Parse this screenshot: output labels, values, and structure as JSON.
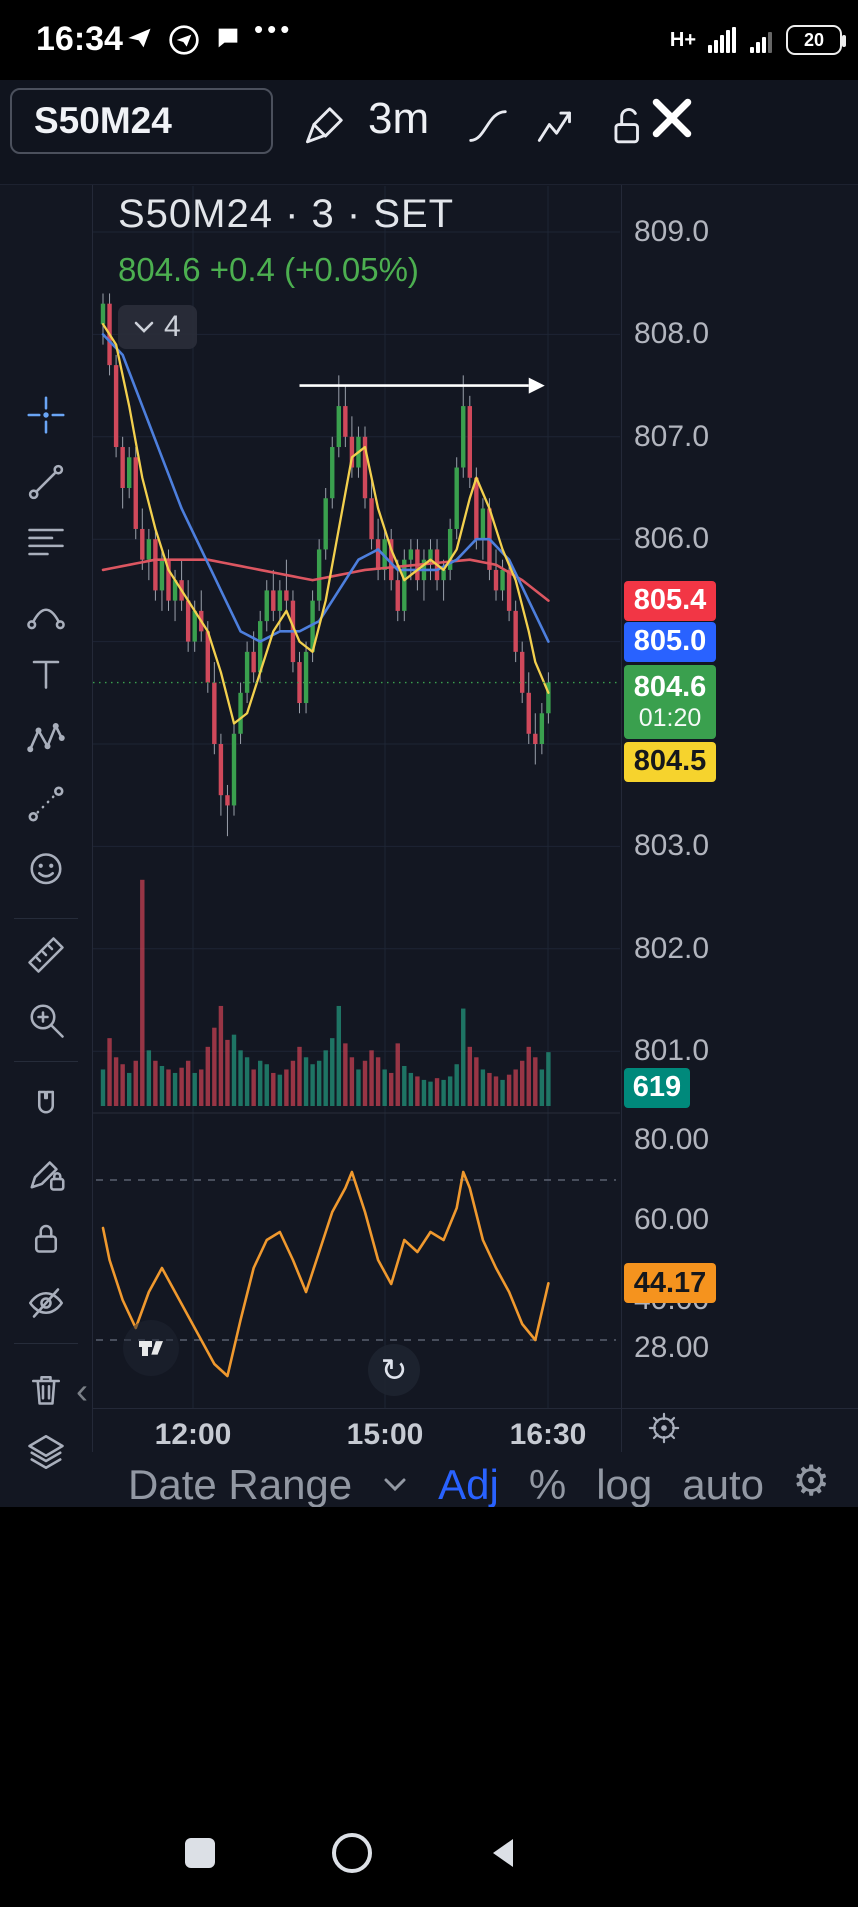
{
  "status_bar": {
    "time": "16:34",
    "network": "H+",
    "battery": "20"
  },
  "toolbar": {
    "symbol": "S50M24",
    "timeframe": "3m"
  },
  "header": {
    "title": "S50M24 · 3 · SET",
    "price": "804.6",
    "change": "+0.4",
    "change_pct": "(+0.05%)",
    "indicators_count": "4"
  },
  "bottom_bar": {
    "date_range": "Date Range",
    "adj": "Adj",
    "percent": "%",
    "log": "log",
    "auto": "auto"
  },
  "colors": {
    "bg": "#131722",
    "grid": "#1e2534",
    "border": "#2a2e39",
    "up": "#3aa04e",
    "down": "#d0495b",
    "wick": "#9aa0ab",
    "vol_up": "rgba(34,140,118,0.8)",
    "vol_down": "rgba(198,64,82,0.75)",
    "ma_yellow": "#f3d04e",
    "ma_blue": "#4d7fdd",
    "ma_red": "#dc5661",
    "rsi": "#f0992e",
    "green_text": "#4caf50",
    "arrow": "#ffffff"
  },
  "chart_data": {
    "type": "candlestick",
    "symbol": "S50M24",
    "interval": "3",
    "exchange": "SET",
    "last": 804.6,
    "change": 0.4,
    "change_pct": 0.05,
    "countdown": "01:20",
    "price_axis_labels": [
      "809.0",
      "808.0",
      "807.0",
      "806.0",
      "803.0",
      "802.0",
      "801.0"
    ],
    "price_gridlines": [
      809,
      808,
      807,
      806,
      805,
      804,
      803,
      802,
      801
    ],
    "rsi_axis_labels": [
      "80.00",
      "60.00",
      "40.00",
      "28.00"
    ],
    "rsi_dashed_levels": [
      70,
      30
    ],
    "time_axis_labels": [
      "12:00",
      "15:00",
      "16:30"
    ],
    "last_price_line": 804.6,
    "arrow_annotation": {
      "from_index": 30,
      "to_index": 65,
      "price": 807.5
    },
    "price_badges": [
      {
        "id": "ma-red",
        "text": "805.4",
        "bg": "#f23645",
        "fg": "#ffffff",
        "price": 805.4
      },
      {
        "id": "ma-blue",
        "text": "805.0",
        "bg": "#2962ff",
        "fg": "#ffffff",
        "price": 805.0
      },
      {
        "id": "last",
        "text": "804.6",
        "sub": "01:20",
        "bg": "#3aa04e",
        "fg": "#ffffff",
        "price": 804.6
      },
      {
        "id": "ma-yellow",
        "text": "804.5",
        "bg": "#f6d32d",
        "fg": "#15171c",
        "price": 804.5
      },
      {
        "id": "volume",
        "text": "619",
        "bg": "#00897b",
        "fg": "#ffffff"
      },
      {
        "id": "rsi",
        "text": "44.17",
        "bg": "#f5931e",
        "fg": "#15171c",
        "value": 44.17
      }
    ],
    "candles": [
      [
        808.1,
        808.4,
        807.9,
        808.3
      ],
      [
        808.3,
        808.4,
        807.6,
        807.7
      ],
      [
        807.7,
        807.8,
        806.8,
        806.9
      ],
      [
        806.9,
        807.0,
        806.3,
        806.5
      ],
      [
        806.5,
        806.9,
        806.4,
        806.8
      ],
      [
        806.8,
        806.9,
        806.0,
        806.1
      ],
      [
        806.1,
        806.3,
        805.7,
        805.8
      ],
      [
        805.8,
        806.1,
        805.6,
        806.0
      ],
      [
        806.0,
        806.1,
        805.4,
        805.5
      ],
      [
        805.5,
        805.9,
        805.3,
        805.8
      ],
      [
        805.8,
        805.9,
        805.3,
        805.4
      ],
      [
        805.4,
        805.7,
        805.2,
        805.6
      ],
      [
        805.6,
        805.8,
        805.3,
        805.4
      ],
      [
        805.4,
        805.6,
        804.9,
        805.0
      ],
      [
        805.0,
        805.4,
        804.9,
        805.3
      ],
      [
        805.3,
        805.5,
        805.0,
        805.1
      ],
      [
        805.1,
        805.2,
        804.5,
        804.6
      ],
      [
        804.6,
        804.8,
        803.9,
        804.0
      ],
      [
        804.0,
        804.1,
        803.3,
        803.5
      ],
      [
        803.5,
        803.6,
        803.1,
        803.4
      ],
      [
        803.4,
        804.2,
        803.3,
        804.1
      ],
      [
        804.1,
        804.6,
        804.0,
        804.5
      ],
      [
        804.5,
        805.0,
        804.4,
        804.9
      ],
      [
        804.9,
        805.1,
        804.6,
        804.7
      ],
      [
        804.7,
        805.3,
        804.6,
        805.2
      ],
      [
        805.2,
        805.6,
        805.1,
        805.5
      ],
      [
        805.5,
        805.7,
        805.2,
        805.3
      ],
      [
        805.3,
        805.6,
        805.1,
        805.5
      ],
      [
        805.5,
        805.8,
        805.3,
        805.4
      ],
      [
        805.4,
        805.5,
        804.7,
        804.8
      ],
      [
        804.8,
        804.9,
        804.3,
        804.4
      ],
      [
        804.4,
        805.0,
        804.3,
        804.9
      ],
      [
        804.9,
        805.5,
        804.8,
        805.4
      ],
      [
        805.4,
        806.0,
        805.3,
        805.9
      ],
      [
        805.9,
        806.5,
        805.8,
        806.4
      ],
      [
        806.4,
        807.0,
        806.3,
        806.9
      ],
      [
        806.9,
        807.6,
        806.8,
        807.3
      ],
      [
        807.3,
        807.5,
        806.9,
        807.0
      ],
      [
        807.0,
        807.2,
        806.6,
        806.7
      ],
      [
        806.7,
        807.1,
        806.6,
        807.0
      ],
      [
        807.0,
        807.1,
        806.3,
        806.4
      ],
      [
        806.4,
        806.6,
        805.9,
        806.0
      ],
      [
        806.0,
        806.2,
        805.6,
        805.7
      ],
      [
        805.7,
        806.1,
        805.6,
        806.0
      ],
      [
        806.0,
        806.1,
        805.5,
        805.6
      ],
      [
        805.6,
        805.8,
        805.2,
        805.3
      ],
      [
        805.3,
        805.9,
        805.2,
        805.8
      ],
      [
        805.8,
        806.0,
        805.6,
        805.9
      ],
      [
        805.9,
        806.0,
        805.5,
        805.6
      ],
      [
        805.6,
        805.9,
        805.4,
        805.8
      ],
      [
        805.8,
        806.0,
        805.6,
        805.9
      ],
      [
        805.9,
        806.0,
        805.5,
        805.6
      ],
      [
        805.6,
        805.8,
        805.4,
        805.7
      ],
      [
        805.7,
        806.2,
        805.6,
        806.1
      ],
      [
        806.1,
        806.8,
        806.0,
        806.7
      ],
      [
        806.7,
        807.6,
        806.6,
        807.3
      ],
      [
        807.3,
        807.4,
        806.5,
        806.6
      ],
      [
        806.6,
        806.7,
        805.9,
        806.0
      ],
      [
        806.0,
        806.4,
        805.8,
        806.3
      ],
      [
        806.3,
        806.4,
        805.6,
        805.7
      ],
      [
        805.7,
        805.9,
        805.4,
        805.5
      ],
      [
        805.5,
        805.8,
        805.4,
        805.7
      ],
      [
        805.7,
        805.8,
        805.2,
        805.3
      ],
      [
        805.3,
        805.4,
        804.8,
        804.9
      ],
      [
        804.9,
        805.0,
        804.4,
        804.5
      ],
      [
        804.5,
        804.7,
        804.0,
        804.1
      ],
      [
        804.1,
        804.3,
        803.8,
        804.0
      ],
      [
        804.0,
        804.4,
        803.9,
        804.3
      ],
      [
        804.3,
        804.7,
        804.2,
        804.6
      ]
    ],
    "volume": [
      420,
      780,
      560,
      480,
      380,
      520,
      2600,
      640,
      520,
      460,
      420,
      380,
      440,
      520,
      380,
      420,
      680,
      900,
      1150,
      760,
      820,
      640,
      560,
      420,
      520,
      480,
      380,
      360,
      420,
      520,
      680,
      560,
      480,
      520,
      640,
      780,
      1150,
      720,
      560,
      420,
      520,
      640,
      560,
      420,
      380,
      720,
      460,
      380,
      340,
      300,
      280,
      320,
      300,
      340,
      480,
      1120,
      680,
      560,
      420,
      380,
      340,
      300,
      360,
      420,
      520,
      680,
      560,
      420,
      619
    ],
    "ma_yellow": [
      [
        0,
        808.1
      ],
      [
        2,
        807.9
      ],
      [
        4,
        807.3
      ],
      [
        6,
        806.6
      ],
      [
        8,
        806.1
      ],
      [
        10,
        805.7
      ],
      [
        12,
        805.5
      ],
      [
        14,
        805.3
      ],
      [
        16,
        805.1
      ],
      [
        18,
        804.7
      ],
      [
        20,
        804.2
      ],
      [
        22,
        804.3
      ],
      [
        24,
        804.7
      ],
      [
        26,
        805.1
      ],
      [
        28,
        805.3
      ],
      [
        30,
        805.0
      ],
      [
        32,
        804.9
      ],
      [
        34,
        805.4
      ],
      [
        36,
        806.1
      ],
      [
        38,
        806.8
      ],
      [
        40,
        806.9
      ],
      [
        42,
        806.3
      ],
      [
        44,
        805.9
      ],
      [
        46,
        805.6
      ],
      [
        48,
        805.7
      ],
      [
        50,
        805.8
      ],
      [
        52,
        805.7
      ],
      [
        54,
        805.9
      ],
      [
        56,
        806.4
      ],
      [
        57,
        806.6
      ],
      [
        59,
        806.3
      ],
      [
        61,
        805.9
      ],
      [
        63,
        805.6
      ],
      [
        65,
        805.1
      ],
      [
        66,
        804.8
      ],
      [
        68,
        804.5
      ]
    ],
    "ma_blue": [
      [
        0,
        808.0
      ],
      [
        3,
        807.8
      ],
      [
        6,
        807.3
      ],
      [
        9,
        806.8
      ],
      [
        12,
        806.3
      ],
      [
        15,
        805.9
      ],
      [
        18,
        805.5
      ],
      [
        21,
        805.1
      ],
      [
        24,
        805.0
      ],
      [
        27,
        805.1
      ],
      [
        30,
        805.1
      ],
      [
        33,
        805.2
      ],
      [
        36,
        805.5
      ],
      [
        39,
        805.8
      ],
      [
        42,
        805.9
      ],
      [
        45,
        805.7
      ],
      [
        48,
        805.7
      ],
      [
        51,
        805.7
      ],
      [
        54,
        805.8
      ],
      [
        57,
        806.0
      ],
      [
        59,
        806.0
      ],
      [
        62,
        805.8
      ],
      [
        65,
        805.4
      ],
      [
        68,
        805.0
      ]
    ],
    "ma_red": [
      [
        0,
        805.7
      ],
      [
        8,
        805.8
      ],
      [
        16,
        805.8
      ],
      [
        24,
        805.7
      ],
      [
        32,
        805.6
      ],
      [
        40,
        805.7
      ],
      [
        48,
        805.75
      ],
      [
        56,
        805.8
      ],
      [
        60,
        805.75
      ],
      [
        64,
        805.6
      ],
      [
        68,
        805.4
      ]
    ],
    "rsi": [
      [
        0,
        58
      ],
      [
        1,
        50
      ],
      [
        3,
        40
      ],
      [
        5,
        33
      ],
      [
        7,
        42
      ],
      [
        9,
        48
      ],
      [
        11,
        42
      ],
      [
        13,
        36
      ],
      [
        15,
        30
      ],
      [
        17,
        24
      ],
      [
        19,
        21
      ],
      [
        21,
        35
      ],
      [
        23,
        48
      ],
      [
        25,
        55
      ],
      [
        27,
        57
      ],
      [
        29,
        50
      ],
      [
        31,
        42
      ],
      [
        33,
        52
      ],
      [
        35,
        62
      ],
      [
        37,
        68
      ],
      [
        38,
        72
      ],
      [
        40,
        62
      ],
      [
        42,
        50
      ],
      [
        44,
        44
      ],
      [
        46,
        55
      ],
      [
        48,
        52
      ],
      [
        50,
        57
      ],
      [
        52,
        55
      ],
      [
        54,
        63
      ],
      [
        55,
        72
      ],
      [
        56,
        68
      ],
      [
        58,
        55
      ],
      [
        60,
        48
      ],
      [
        62,
        42
      ],
      [
        64,
        34
      ],
      [
        66,
        30
      ],
      [
        68,
        44.17
      ]
    ]
  }
}
